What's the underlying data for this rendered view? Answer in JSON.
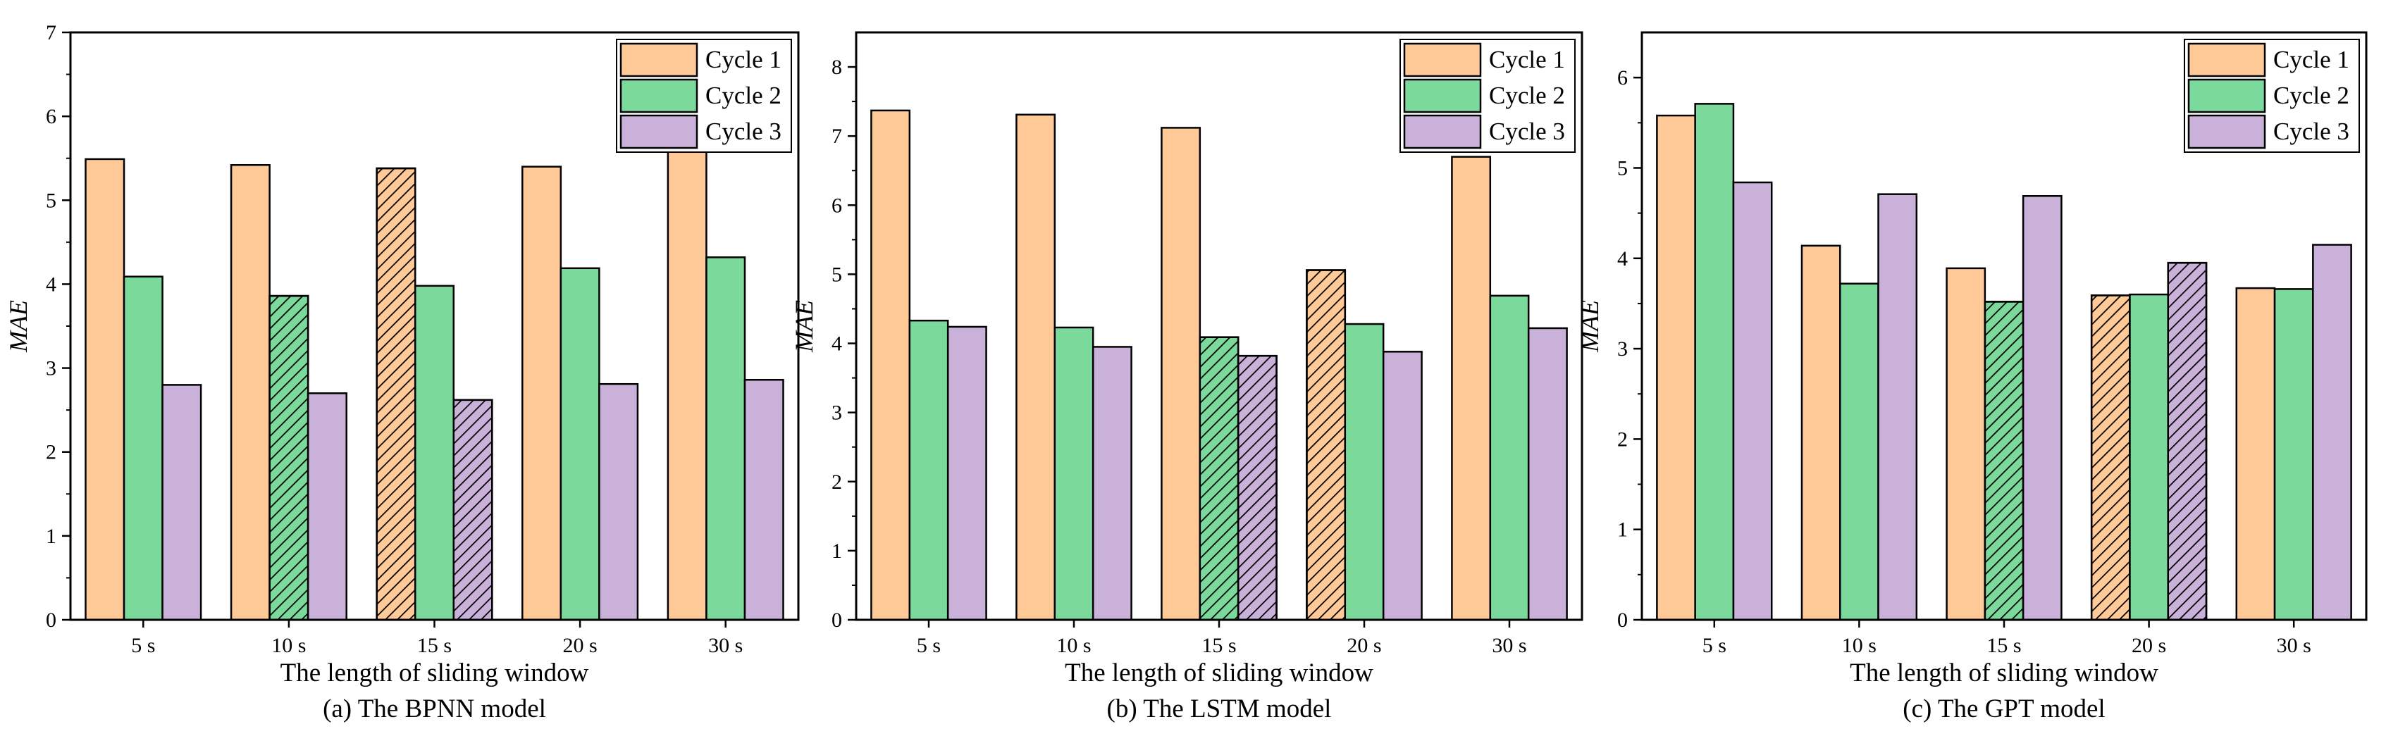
{
  "figure": {
    "legend_labels": [
      "Cycle 1",
      "Cycle 2",
      "Cycle 3"
    ],
    "colors": {
      "cycle1": "#FFCA98",
      "cycle2": "#7CD99C",
      "cycle3": "#C9B1DA",
      "axis": "#000000"
    }
  },
  "chart_data": [
    {
      "type": "bar",
      "caption": "(a) The BPNN model",
      "xlabel": "The length of sliding window",
      "ylabel": "MAE",
      "ylim": [
        0,
        7
      ],
      "yticks": [
        0,
        1,
        2,
        3,
        4,
        5,
        6,
        7
      ],
      "legend": "top-right",
      "grid": false,
      "categories": [
        "5 s",
        "10 s",
        "15 s",
        "20 s",
        "30 s"
      ],
      "series": [
        {
          "name": "Cycle 1",
          "values": [
            5.49,
            5.42,
            5.38,
            5.4,
            5.65
          ],
          "hatched": [
            false,
            false,
            true,
            false,
            false
          ]
        },
        {
          "name": "Cycle 2",
          "values": [
            4.09,
            3.86,
            3.98,
            4.19,
            4.32
          ],
          "hatched": [
            false,
            true,
            false,
            false,
            false
          ]
        },
        {
          "name": "Cycle 3",
          "values": [
            2.8,
            2.7,
            2.62,
            2.81,
            2.86
          ],
          "hatched": [
            false,
            false,
            true,
            false,
            false
          ]
        }
      ]
    },
    {
      "type": "bar",
      "caption": "(b) The LSTM model",
      "xlabel": "The length of sliding window",
      "ylabel": "MAE",
      "ylim": [
        0,
        8.5
      ],
      "yticks": [
        0,
        1,
        2,
        3,
        4,
        5,
        6,
        7,
        8
      ],
      "legend": "top-right",
      "grid": false,
      "categories": [
        "5 s",
        "10 s",
        "15 s",
        "20 s",
        "30 s"
      ],
      "series": [
        {
          "name": "Cycle 1",
          "values": [
            7.37,
            7.31,
            7.12,
            5.06,
            6.7
          ],
          "hatched": [
            false,
            false,
            false,
            true,
            false
          ]
        },
        {
          "name": "Cycle 2",
          "values": [
            4.33,
            4.23,
            4.09,
            4.28,
            4.69
          ],
          "hatched": [
            false,
            false,
            true,
            false,
            false
          ]
        },
        {
          "name": "Cycle 3",
          "values": [
            4.24,
            3.95,
            3.82,
            3.88,
            4.22
          ],
          "hatched": [
            false,
            false,
            true,
            false,
            false
          ]
        }
      ]
    },
    {
      "type": "bar",
      "caption": "(c) The GPT model",
      "xlabel": "The length of sliding window",
      "ylabel": "MAE",
      "ylim": [
        0,
        6.5
      ],
      "yticks": [
        0,
        1,
        2,
        3,
        4,
        5,
        6
      ],
      "legend": "top-right",
      "grid": false,
      "categories": [
        "5 s",
        "10 s",
        "15 s",
        "20 s",
        "30 s"
      ],
      "series": [
        {
          "name": "Cycle 1",
          "values": [
            5.58,
            4.14,
            3.89,
            3.59,
            3.67
          ],
          "hatched": [
            false,
            false,
            false,
            true,
            false
          ]
        },
        {
          "name": "Cycle 2",
          "values": [
            5.71,
            3.72,
            3.52,
            3.6,
            3.66
          ],
          "hatched": [
            false,
            false,
            true,
            false,
            false
          ]
        },
        {
          "name": "Cycle 3",
          "values": [
            4.84,
            4.71,
            4.69,
            3.95,
            4.15
          ],
          "hatched": [
            false,
            false,
            false,
            true,
            false
          ]
        }
      ]
    }
  ]
}
